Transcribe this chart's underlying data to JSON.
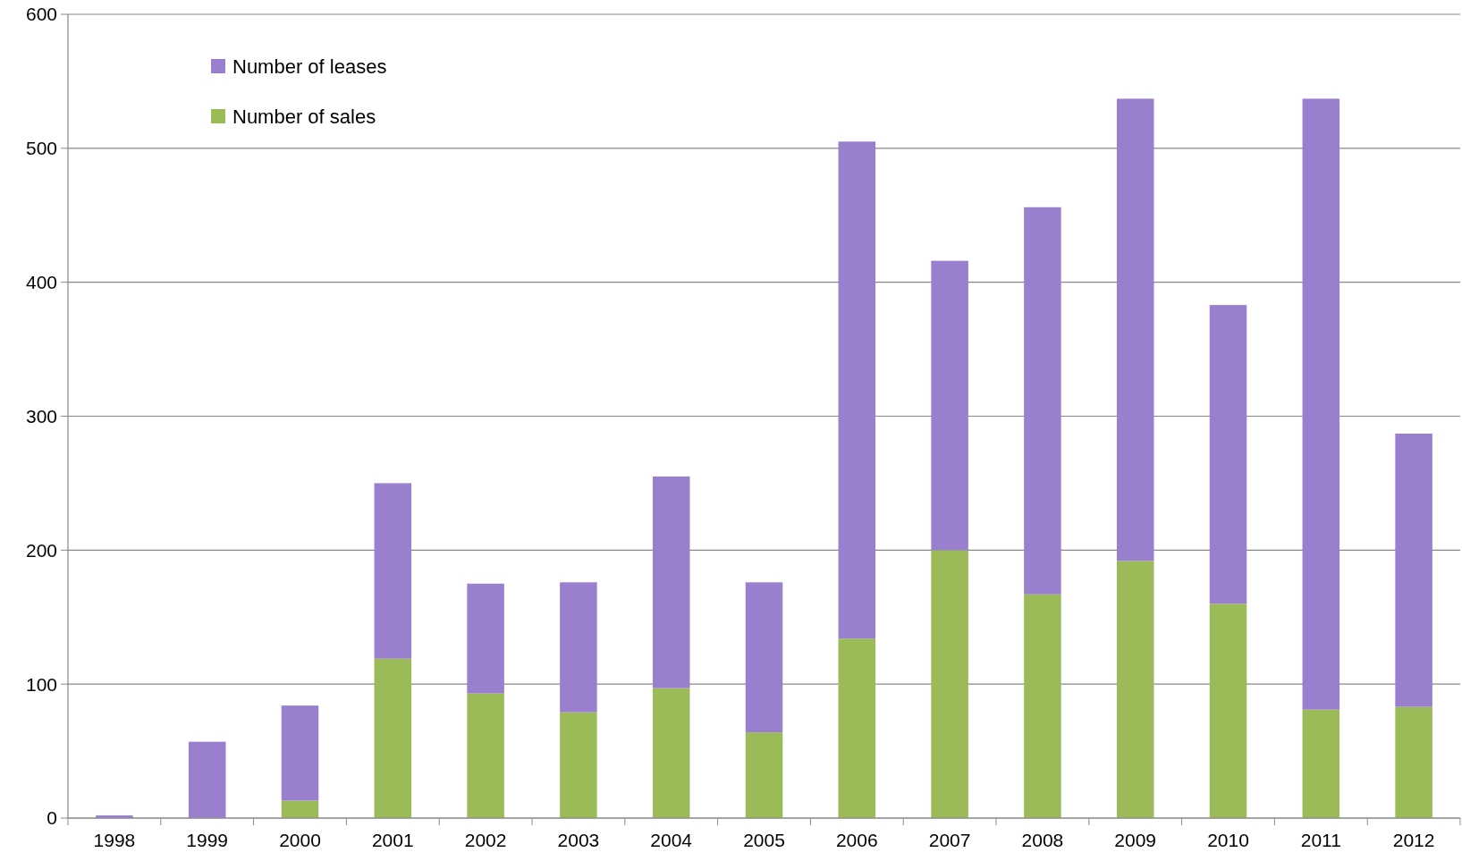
{
  "chart_data": {
    "type": "bar",
    "stacked": true,
    "categories": [
      "1998",
      "1999",
      "2000",
      "2001",
      "2002",
      "2003",
      "2004",
      "2005",
      "2006",
      "2007",
      "2008",
      "2009",
      "2010",
      "2011",
      "2012"
    ],
    "series": [
      {
        "name": "Number of sales",
        "color": "#9bbb59",
        "values": [
          0,
          null,
          13,
          119,
          93,
          79,
          97,
          64,
          134,
          200,
          167,
          192,
          160,
          81,
          83
        ]
      },
      {
        "name": "Number of leases",
        "color": "#9b7fcf",
        "values": [
          2,
          57,
          71,
          131,
          82,
          97,
          158,
          112,
          371,
          216,
          289,
          345,
          223,
          456,
          204
        ]
      }
    ],
    "ylim": [
      0,
      600
    ],
    "yticks": [
      0,
      100,
      200,
      300,
      400,
      500,
      600
    ],
    "grid": "y",
    "legend": "top left"
  }
}
